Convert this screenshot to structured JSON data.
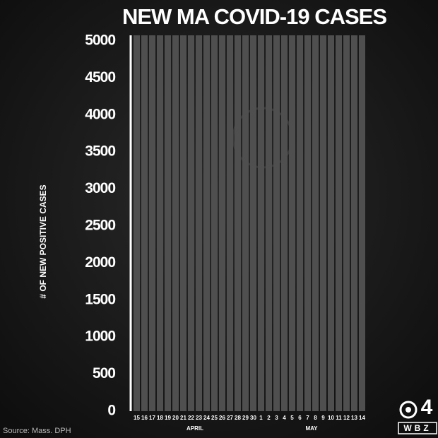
{
  "chart_data": {
    "type": "bar",
    "title": "NEW MA COVID-19 CASES",
    "y_label": "# OF NEW POSITIVE CASES",
    "categories": [
      "15",
      "16",
      "17",
      "18",
      "19",
      "20",
      "21",
      "22",
      "23",
      "24",
      "25",
      "26",
      "27",
      "28",
      "29",
      "30",
      "1",
      "2",
      "3",
      "4",
      "5",
      "6",
      "7",
      "8",
      "9",
      "10",
      "11",
      "12",
      "13",
      "14"
    ],
    "months": [
      "APRIL",
      "MAY"
    ],
    "ylim": [
      0,
      5000
    ],
    "yticks": [
      0,
      500,
      1000,
      1500,
      2000,
      2500,
      3000,
      3500,
      4000,
      4500,
      5000
    ],
    "source": "Source: Mass. DPH",
    "logo": {
      "number": "4",
      "call_sign": "WBZ"
    }
  }
}
